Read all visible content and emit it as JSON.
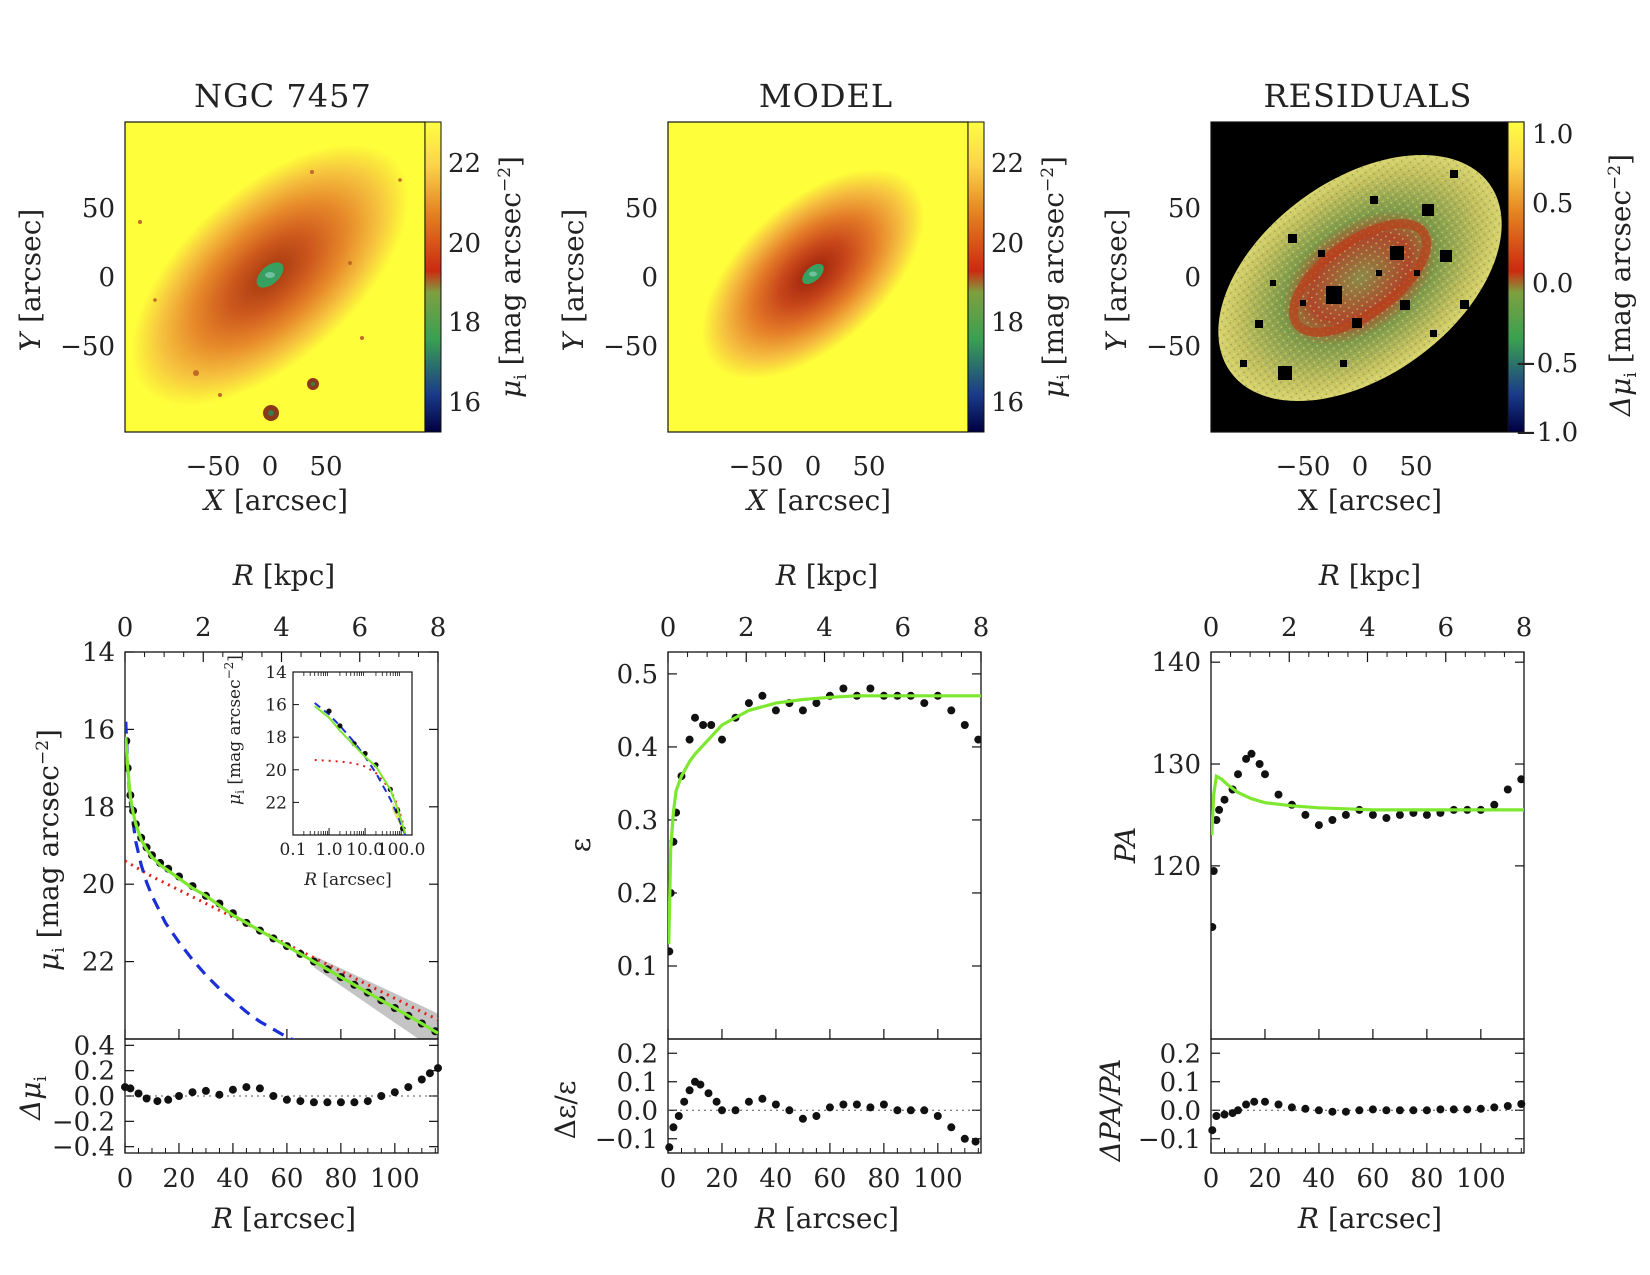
{
  "figure": {
    "titles": [
      "NGC 7457",
      "MODEL",
      "RESIDUALS"
    ],
    "image_axis_unit": "[arcsec]",
    "image_y_symbol": "Y",
    "image_x_symbol": "X",
    "image_x_symbol_residuals": "X",
    "image_ticks": [
      "−50",
      "0",
      "50"
    ],
    "image_y_ticks": [
      "50",
      "0",
      "−50"
    ],
    "colorbar_ticks": [
      "22",
      "20",
      "18",
      "16"
    ],
    "colorbar_ticks_residuals": [
      "1.0",
      "0.5",
      "0.0",
      "−0.5",
      "−1.0"
    ],
    "colorbar_label_symbol": "μ",
    "colorbar_label_sub": "i",
    "colorbar_label_unit": " [mag arcsec",
    "colorbar_label_exp": "−2",
    "colorbar_label_close": "]",
    "colorbar_resid_prefix": "Δμ",
    "top_axis_symbol": "R",
    "top_axis_unit": " [kpc]",
    "top_axis_ticks": [
      "0",
      "2",
      "4",
      "6",
      "8"
    ],
    "bottom_axis_symbol": "R",
    "bottom_axis_unit": " [arcsec]",
    "bottom_axis_ticks": [
      "0",
      "20",
      "40",
      "60",
      "80",
      "100"
    ],
    "sb_ylabel_symbol": "μ",
    "sb_ylabel_sub": "i",
    "sb_ylabel_unit": " [mag arcsec",
    "sb_ylabel_exp": "−2",
    "sb_ylabel_close": "]",
    "sb_yticks": [
      "14",
      "16",
      "18",
      "20",
      "22"
    ],
    "sb_resid_symbol": "Δμ",
    "sb_resid_sub": "i",
    "sb_resid_ticks": [
      "0.4",
      "0.2",
      "0.0",
      "−0.2",
      "−0.4"
    ],
    "inset_yticks": [
      "14",
      "16",
      "18",
      "20",
      "22"
    ],
    "inset_xticks": [
      "0.1",
      "1.0",
      "10.0",
      "100.0"
    ],
    "inset_xlabel_symbol": "R",
    "inset_xlabel_unit": " [arcsec]",
    "ell_ylabel": "ε",
    "ell_yticks": [
      "0.5",
      "0.4",
      "0.3",
      "0.2",
      "0.1"
    ],
    "ell_resid_label": "Δε/ε",
    "ell_resid_ticks": [
      "0.2",
      "0.1",
      "0.0",
      "−0.1"
    ],
    "pa_ylabel": "PA",
    "pa_yticks": [
      "140",
      "130",
      "120"
    ],
    "pa_resid_label": "ΔPA/PA",
    "pa_resid_ticks": [
      "0.2",
      "0.1",
      "0.0",
      "−0.1"
    ]
  },
  "colors": {
    "data_points": "#111111",
    "total_model": "#7ee830",
    "bulge": "#1b2fd6",
    "disk": "#e0201a",
    "uncertainty_band": "#c4c4c4",
    "image_background": "#fefe3a"
  },
  "chart_data": [
    {
      "type": "line",
      "panel": "surface-brightness-profile",
      "xlabel": "R [arcsec]",
      "x2label": "R [kpc]",
      "ylabel": "μ_i [mag arcsec^-2]",
      "xlim": [
        0,
        116
      ],
      "x2lim": [
        0,
        8
      ],
      "ylim": [
        24,
        14
      ],
      "grid": false,
      "series": [
        {
          "style": "points",
          "x": [
            0.5,
            1,
            2,
            3,
            4,
            6,
            8,
            10,
            13,
            16,
            20,
            25,
            30,
            35,
            40,
            45,
            50,
            55,
            60,
            65,
            70,
            75,
            80,
            85,
            90,
            95,
            100,
            105,
            110,
            115
          ],
          "y": [
            16.3,
            17.0,
            17.7,
            18.1,
            18.45,
            18.8,
            19.05,
            19.25,
            19.45,
            19.6,
            19.8,
            20.05,
            20.3,
            20.5,
            20.75,
            21.0,
            21.2,
            21.4,
            21.6,
            21.8,
            22.0,
            22.2,
            22.4,
            22.6,
            22.8,
            23.0,
            23.2,
            23.4,
            23.6,
            23.8
          ]
        },
        {
          "style": "solid",
          "x": [
            0.3,
            1,
            2,
            3,
            4,
            6,
            8,
            10,
            13,
            16,
            20,
            25,
            30,
            35,
            40,
            45,
            50,
            55,
            60,
            65,
            70,
            75,
            80,
            85,
            90,
            95,
            100,
            105,
            110,
            116
          ],
          "y": [
            16.2,
            17.0,
            17.75,
            18.15,
            18.45,
            18.85,
            19.1,
            19.3,
            19.5,
            19.65,
            19.85,
            20.1,
            20.3,
            20.55,
            20.8,
            21.0,
            21.2,
            21.4,
            21.6,
            21.8,
            22.0,
            22.2,
            22.4,
            22.6,
            22.8,
            23.0,
            23.2,
            23.4,
            23.6,
            23.85
          ]
        },
        {
          "style": "dashed",
          "x": [
            0.3,
            1,
            2,
            4,
            6,
            8,
            10,
            15,
            20,
            25,
            30,
            35,
            40,
            45,
            50,
            55,
            60,
            65
          ],
          "y": [
            15.8,
            17.0,
            17.9,
            18.9,
            19.5,
            19.95,
            20.3,
            21.0,
            21.5,
            21.95,
            22.35,
            22.7,
            23.0,
            23.3,
            23.55,
            23.75,
            23.95,
            24.1
          ]
        },
        {
          "style": "dotted",
          "x": [
            0,
            10,
            20,
            30,
            40,
            50,
            60,
            70,
            80,
            90,
            100,
            110,
            116
          ],
          "y": [
            19.4,
            19.8,
            20.15,
            20.5,
            20.85,
            21.2,
            21.55,
            21.9,
            22.25,
            22.6,
            22.95,
            23.3,
            23.5
          ]
        }
      ]
    },
    {
      "type": "scatter",
      "panel": "surface-brightness-residuals",
      "ylabel": "Δμ_i",
      "xlabel": "R [arcsec]",
      "xlim": [
        0,
        116
      ],
      "ylim": [
        -0.45,
        0.45
      ],
      "series": [
        {
          "style": "points",
          "x": [
            0,
            2,
            5,
            8,
            12,
            16,
            20,
            25,
            30,
            35,
            40,
            45,
            50,
            55,
            60,
            65,
            70,
            75,
            80,
            85,
            90,
            95,
            100,
            105,
            110,
            113,
            116
          ],
          "y": [
            0.07,
            0.06,
            0.02,
            -0.02,
            -0.04,
            -0.03,
            0.0,
            0.03,
            0.04,
            0.01,
            0.05,
            0.07,
            0.06,
            0.0,
            -0.03,
            -0.04,
            -0.05,
            -0.05,
            -0.05,
            -0.05,
            -0.04,
            0.0,
            0.03,
            0.07,
            0.13,
            0.18,
            0.22
          ]
        }
      ]
    },
    {
      "type": "line",
      "panel": "surface-brightness-inset",
      "xscale": "log",
      "xlim": [
        0.1,
        200
      ],
      "ylim": [
        24,
        14
      ],
      "ylabel": "μ_i [mag arcsec^-2]",
      "xlabel": "R [arcsec]",
      "series": [
        {
          "style": "points",
          "x": [
            1,
            2,
            5,
            10,
            20,
            50,
            80,
            110
          ],
          "y": [
            16.4,
            17.3,
            18.4,
            19.0,
            19.7,
            21.2,
            22.5,
            23.6
          ]
        },
        {
          "style": "solid",
          "x": [
            0.4,
            1,
            2,
            5,
            10,
            20,
            50,
            80,
            110,
            130
          ],
          "y": [
            16.1,
            16.8,
            17.6,
            18.5,
            19.2,
            19.8,
            21.2,
            22.4,
            23.4,
            23.9
          ]
        },
        {
          "style": "dashed",
          "x": [
            0.4,
            1,
            2,
            5,
            10,
            20,
            50,
            80,
            110,
            130
          ],
          "y": [
            15.9,
            16.6,
            17.3,
            18.3,
            19.2,
            20.2,
            21.8,
            22.8,
            23.6,
            24.0
          ]
        },
        {
          "style": "dotted",
          "x": [
            0.4,
            1,
            2,
            5,
            10,
            20,
            50,
            80,
            110,
            130
          ],
          "y": [
            19.4,
            19.45,
            19.5,
            19.6,
            19.8,
            20.2,
            21.2,
            22.2,
            23.2,
            23.7
          ]
        }
      ]
    },
    {
      "type": "line",
      "panel": "ellipticity-profile",
      "ylabel": "ε",
      "xlabel": "R [arcsec]",
      "xlim": [
        0,
        116
      ],
      "ylim": [
        0.0,
        0.53
      ],
      "series": [
        {
          "style": "points",
          "x": [
            0.5,
            1,
            2,
            3,
            5,
            8,
            10,
            13,
            16,
            20,
            25,
            30,
            35,
            40,
            45,
            50,
            55,
            60,
            65,
            70,
            75,
            80,
            85,
            90,
            95,
            100,
            105,
            110,
            115
          ],
          "y": [
            0.12,
            0.2,
            0.27,
            0.31,
            0.36,
            0.41,
            0.44,
            0.43,
            0.43,
            0.41,
            0.44,
            0.46,
            0.47,
            0.45,
            0.46,
            0.45,
            0.46,
            0.47,
            0.48,
            0.47,
            0.48,
            0.47,
            0.47,
            0.47,
            0.46,
            0.47,
            0.45,
            0.43,
            0.41
          ]
        },
        {
          "style": "solid",
          "x": [
            0.3,
            1,
            2,
            3,
            5,
            8,
            10,
            15,
            20,
            30,
            40,
            50,
            60,
            70,
            80,
            90,
            100,
            116
          ],
          "y": [
            0.13,
            0.26,
            0.31,
            0.34,
            0.36,
            0.38,
            0.39,
            0.41,
            0.43,
            0.45,
            0.46,
            0.465,
            0.468,
            0.47,
            0.47,
            0.47,
            0.47,
            0.47
          ]
        }
      ]
    },
    {
      "type": "scatter",
      "panel": "ellipticity-residuals",
      "ylabel": "Δε/ε",
      "xlabel": "R [arcsec]",
      "xlim": [
        0,
        116
      ],
      "ylim": [
        -0.15,
        0.25
      ],
      "series": [
        {
          "style": "points",
          "x": [
            0.5,
            2,
            4,
            6,
            8,
            10,
            12,
            15,
            18,
            20,
            25,
            30,
            35,
            40,
            45,
            50,
            55,
            60,
            65,
            70,
            75,
            80,
            85,
            90,
            95,
            100,
            105,
            110,
            114
          ],
          "y": [
            -0.13,
            -0.06,
            -0.02,
            0.03,
            0.07,
            0.1,
            0.09,
            0.06,
            0.03,
            0.0,
            0.0,
            0.03,
            0.04,
            0.02,
            0.0,
            -0.03,
            -0.02,
            0.01,
            0.02,
            0.02,
            0.01,
            0.02,
            0.0,
            0.0,
            0.0,
            -0.02,
            -0.06,
            -0.1,
            -0.11
          ]
        }
      ]
    },
    {
      "type": "line",
      "panel": "position-angle-profile",
      "ylabel": "PA",
      "xlabel": "R [arcsec]",
      "xlim": [
        0,
        116
      ],
      "ylim": [
        103,
        141
      ],
      "series": [
        {
          "style": "points",
          "x": [
            0.5,
            1,
            2,
            3,
            5,
            8,
            10,
            13,
            15,
            18,
            20,
            25,
            30,
            35,
            40,
            45,
            50,
            55,
            60,
            65,
            70,
            75,
            80,
            85,
            90,
            95,
            100,
            105,
            110,
            115
          ],
          "y": [
            114,
            119.5,
            124.5,
            125.5,
            126.5,
            127.5,
            129,
            130.5,
            131,
            130,
            129,
            127,
            126,
            125,
            124,
            124.5,
            125,
            125.5,
            125,
            124.7,
            125,
            125.2,
            125,
            125.2,
            125.5,
            125.5,
            125.5,
            126,
            127.5,
            128.5
          ]
        },
        {
          "style": "solid",
          "x": [
            0.3,
            1,
            2,
            4,
            6,
            8,
            10,
            15,
            20,
            30,
            40,
            50,
            60,
            80,
            100,
            116
          ],
          "y": [
            123,
            127,
            128.8,
            128.5,
            128.0,
            127.6,
            127.2,
            126.6,
            126.2,
            125.9,
            125.7,
            125.6,
            125.5,
            125.5,
            125.5,
            125.5
          ]
        }
      ]
    },
    {
      "type": "scatter",
      "panel": "position-angle-residuals",
      "ylabel": "ΔPA/PA",
      "xlabel": "R [arcsec]",
      "xlim": [
        0,
        116
      ],
      "ylim": [
        -0.15,
        0.25
      ],
      "series": [
        {
          "style": "points",
          "x": [
            0.5,
            2,
            5,
            8,
            10,
            13,
            16,
            20,
            25,
            30,
            35,
            40,
            45,
            50,
            55,
            60,
            65,
            70,
            75,
            80,
            85,
            90,
            95,
            100,
            105,
            110,
            115
          ],
          "y": [
            -0.07,
            -0.02,
            -0.015,
            -0.01,
            0.0,
            0.02,
            0.03,
            0.03,
            0.02,
            0.01,
            0.005,
            0.0,
            -0.005,
            -0.005,
            0.0,
            0.003,
            0.0,
            0.0,
            0.0,
            0.0,
            0.003,
            0.003,
            0.003,
            0.005,
            0.01,
            0.015,
            0.022
          ]
        }
      ]
    }
  ]
}
